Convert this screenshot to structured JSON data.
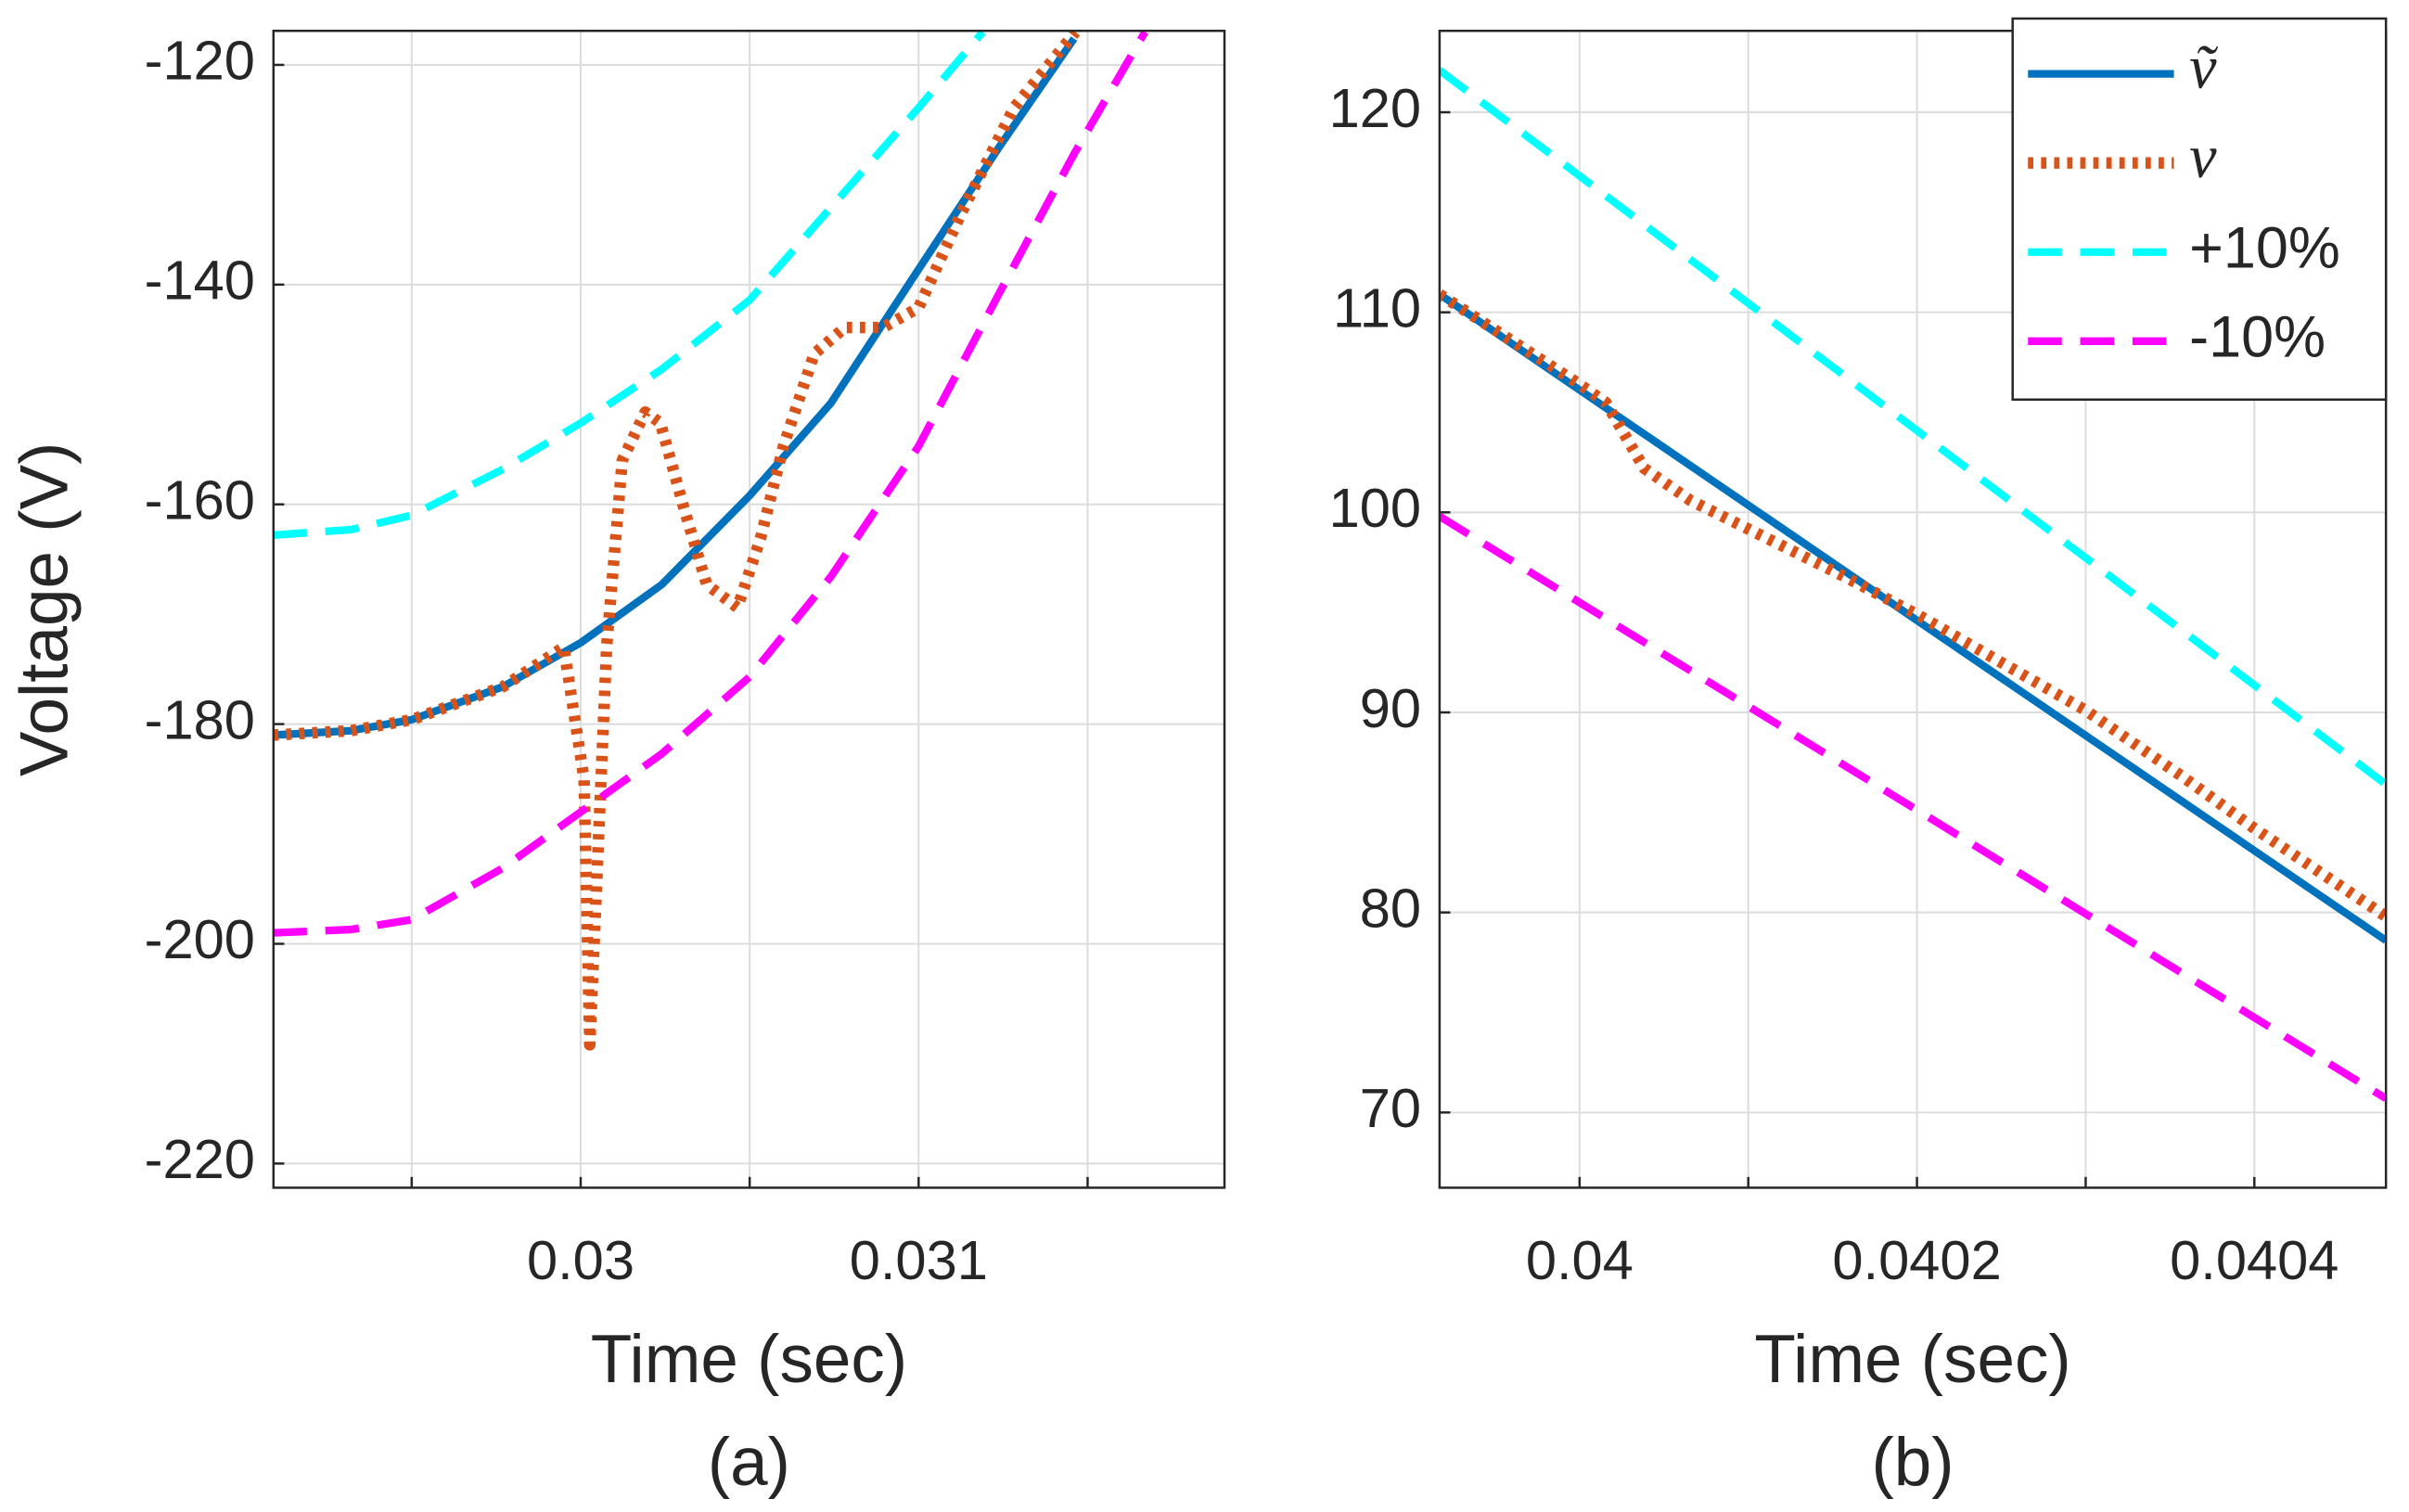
{
  "chart_data": [
    {
      "type": "line",
      "x_label": "Time (sec)",
      "y_label": "Voltage (V)",
      "caption": "(a)",
      "xlim": [
        0.029091,
        0.031905
      ],
      "ylim": [
        -222.2,
        -116.9
      ],
      "xticks": [
        0.03,
        0.031
      ],
      "xminor_ticks": [
        0.0295,
        0.0305,
        0.0315
      ],
      "yticks": [
        -220,
        -200,
        -180,
        -160,
        -140,
        -120
      ],
      "grid": true,
      "series": [
        {
          "color": "#0072bd",
          "style": "solid",
          "x": [
            0.02909,
            0.02932,
            0.0295,
            0.02977,
            0.03,
            0.03024,
            0.0305,
            0.03074,
            0.031,
            0.03124,
            0.03146
          ],
          "values": [
            -181,
            -180.6,
            -179.6,
            -176.6,
            -172.6,
            -167.3,
            -159.2,
            -150.8,
            -138.6,
            -127.4,
            -117.6
          ]
        },
        {
          "color": "#d95319",
          "style": "dotted",
          "x": [
            0.02909,
            0.02932,
            0.0295,
            0.02977,
            0.02995,
            0.03001,
            0.030027,
            0.030077,
            0.030123,
            0.030191,
            0.030236,
            0.030305,
            0.030373,
            0.030464,
            0.030532,
            0.0306,
            0.030691,
            0.030782,
            0.030895,
            0.031,
            0.031123,
            0.031282,
            0.031464
          ],
          "values": [
            -181,
            -180.6,
            -179.6,
            -176.6,
            -173,
            -185,
            -209.2,
            -172.9,
            -156,
            -151.6,
            -152.6,
            -160.3,
            -167.3,
            -169.4,
            -163.1,
            -154.7,
            -146.3,
            -143.9,
            -143.9,
            -142.1,
            -133.7,
            -123.9,
            -117
          ]
        },
        {
          "color": "#00ffff",
          "style": "dashed",
          "x": [
            0.02909,
            0.02932,
            0.0295,
            0.02977,
            0.03,
            0.03024,
            0.0305,
            0.03074,
            0.031,
            0.03119
          ],
          "values": [
            -162.8,
            -162.3,
            -161,
            -156.8,
            -152.6,
            -147.7,
            -141.4,
            -133,
            -123.9,
            -117
          ]
        },
        {
          "color": "#ff00ff",
          "style": "dashed",
          "x": [
            0.02909,
            0.02932,
            0.0295,
            0.02977,
            0.03,
            0.03024,
            0.0305,
            0.03074,
            0.031,
            0.03124,
            0.03146,
            0.03167
          ],
          "values": [
            -199,
            -198.7,
            -197.8,
            -193.1,
            -188,
            -182.7,
            -175.7,
            -166.6,
            -154.7,
            -140.7,
            -128.1,
            -117
          ]
        }
      ]
    },
    {
      "type": "line",
      "x_label": "Time (sec)",
      "caption": "(b)",
      "xlim": [
        0.039917,
        0.040478
      ],
      "ylim": [
        66.24,
        124.07
      ],
      "xticks": [
        0.04,
        0.0402,
        0.0404
      ],
      "xminor_ticks": [
        0.0401,
        0.0403
      ],
      "yticks": [
        70,
        80,
        90,
        100,
        110,
        120
      ],
      "grid": true,
      "legend": "upper right",
      "series": [
        {
          "name": "ṽ",
          "color": "#0072bd",
          "style": "solid",
          "x": [
            0.039917,
            0.0402,
            0.040478
          ],
          "values": [
            110.9,
            94.6,
            78.6
          ]
        },
        {
          "name": "v",
          "color": "#d95319",
          "style": "dotted",
          "x": [
            0.039917,
            0.04,
            0.0400155,
            0.0400383,
            0.0400656,
            0.0401112,
            0.0401567,
            0.0402,
            0.0402478,
            0.0403,
            0.0403572,
            0.0404,
            0.040478
          ],
          "values": [
            110.9,
            106.4,
            105.5,
            102.2,
            100.6,
            98.7,
            96.8,
            94.9,
            92.6,
            90.1,
            86.8,
            84.2,
            79.8
          ]
        },
        {
          "name": "+10%",
          "color": "#00ffff",
          "style": "dashed",
          "x": [
            0.039917,
            0.040478
          ],
          "values": [
            122.1,
            86.4
          ]
        },
        {
          "name": "-10%",
          "color": "#ff00ff",
          "style": "dashed",
          "x": [
            0.039917,
            0.040478
          ],
          "values": [
            99.8,
            70.7
          ]
        }
      ]
    }
  ]
}
